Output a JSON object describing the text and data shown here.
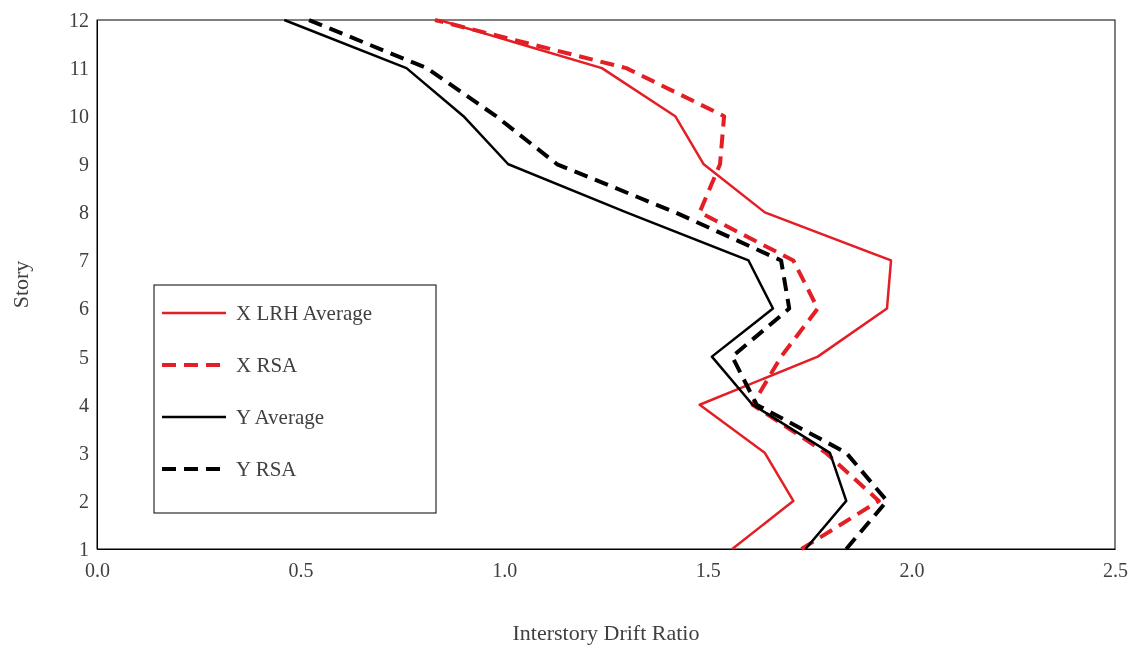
{
  "chart_data": {
    "type": "line",
    "xlabel": "Interstory Drift Ratio",
    "ylabel": "Story",
    "xlim": [
      0,
      2.5
    ],
    "xticks": [
      {
        "value": 0,
        "label": "0.0"
      },
      {
        "value": 0.5,
        "label": "0.5"
      },
      {
        "value": 1,
        "label": "1.0"
      },
      {
        "value": 1.5,
        "label": "1.5"
      },
      {
        "value": 2,
        "label": "2.0"
      },
      {
        "value": 2.5,
        "label": "2.5"
      }
    ],
    "ylim": [
      1,
      12
    ],
    "yticks": [
      1,
      2,
      3,
      4,
      5,
      6,
      7,
      8,
      9,
      10,
      11,
      12
    ],
    "grid": false,
    "legend": "bottom left",
    "marker": "none",
    "series": [
      {
        "name": "X LRH Average",
        "color": "#e31e24",
        "line_style": "solid",
        "x": [
          1.56,
          1.71,
          1.64,
          1.48,
          1.77,
          1.94,
          1.95,
          1.64,
          1.49,
          1.42,
          1.24,
          0.84
        ],
        "values": [
          1,
          2,
          3,
          4,
          5,
          6,
          7,
          8,
          9,
          10,
          11,
          12
        ]
      },
      {
        "name": "X RSA",
        "color": "#e31e24",
        "line_style": "dashed",
        "x": [
          1.73,
          1.92,
          1.79,
          1.61,
          1.68,
          1.77,
          1.71,
          1.48,
          1.53,
          1.54,
          1.3,
          0.83
        ],
        "values": [
          1,
          2,
          3,
          4,
          5,
          6,
          7,
          8,
          9,
          10,
          11,
          12
        ]
      },
      {
        "name": "Y Average",
        "color": "#000000",
        "line_style": "solid",
        "x": [
          1.74,
          1.84,
          1.8,
          1.61,
          1.51,
          1.66,
          1.6,
          1.3,
          1.01,
          0.9,
          0.76,
          0.46
        ],
        "values": [
          1,
          2,
          3,
          4,
          5,
          6,
          7,
          8,
          9,
          10,
          11,
          12
        ]
      },
      {
        "name": "Y RSA",
        "color": "#000000",
        "line_style": "dashed",
        "x": [
          1.84,
          1.94,
          1.84,
          1.62,
          1.56,
          1.7,
          1.68,
          1.42,
          1.13,
          0.98,
          0.81,
          0.52
        ],
        "values": [
          1,
          2,
          3,
          4,
          5,
          6,
          7,
          8,
          9,
          10,
          11,
          12
        ]
      }
    ]
  }
}
